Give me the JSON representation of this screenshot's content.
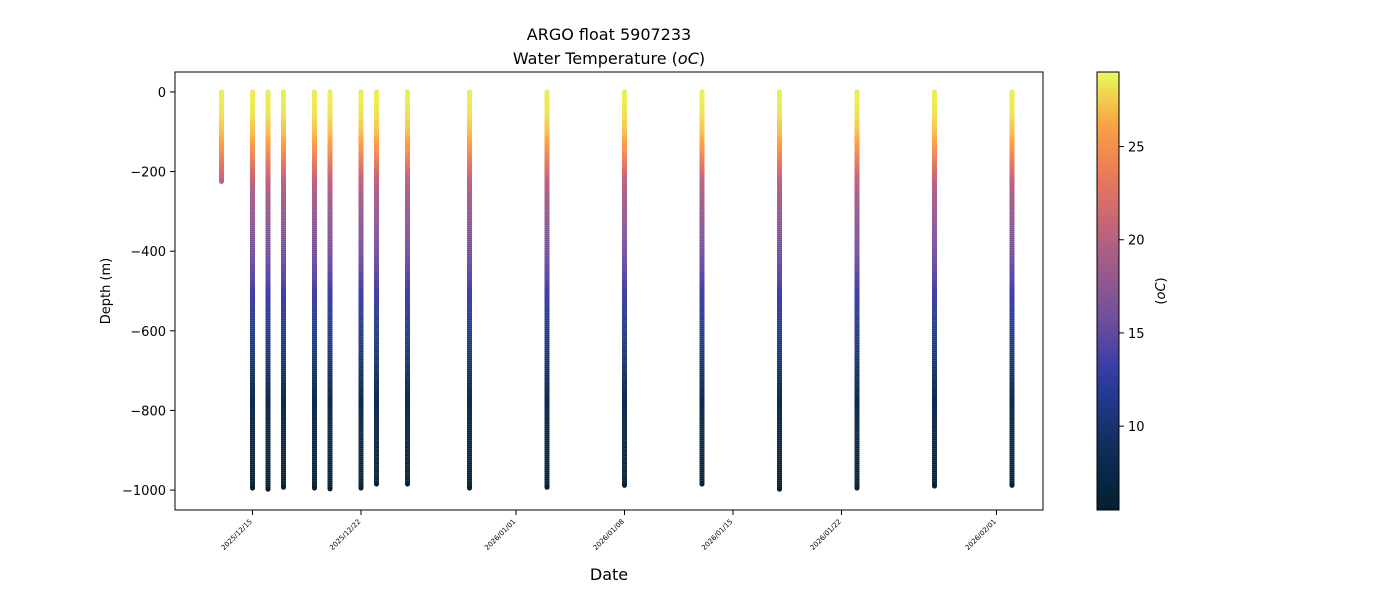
{
  "chart_data": {
    "type": "scatter",
    "title": "ARGO float 5907233",
    "subtitle": "Water Temperature (",
    "subtitle_unit_italic": "oC",
    "subtitle_close": ")",
    "xlabel": "Date",
    "ylabel": "Depth (m)",
    "colorbar_label": "(oC)",
    "xlim": [
      "2025-12-10",
      "2026-02-04"
    ],
    "ylim": [
      -1050,
      50
    ],
    "x_ticks": [
      "2025/12/15",
      "2025/12/22",
      "2026/01/01",
      "2026/01/08",
      "2026/01/15",
      "2026/01/22",
      "2026/02/01"
    ],
    "x_tick_dates": [
      "2025-12-15",
      "2025-12-22",
      "2026-01-01",
      "2026-01-08",
      "2026-01-15",
      "2026-01-22",
      "2026-02-01"
    ],
    "y_ticks": [
      0,
      -200,
      -400,
      -600,
      -800,
      -1000
    ],
    "y_tick_labels": [
      "0",
      "−200",
      "−400",
      "−600",
      "−800",
      "−1000"
    ],
    "colorbar_range": [
      5.5,
      29
    ],
    "colorbar_ticks": [
      10,
      15,
      20,
      25
    ],
    "colormap": "thermal",
    "grid": false,
    "profiles": [
      {
        "date": "2025-12-13",
        "max_depth": -225
      },
      {
        "date": "2025-12-15",
        "max_depth": -995
      },
      {
        "date": "2025-12-16",
        "max_depth": -998
      },
      {
        "date": "2025-12-17",
        "max_depth": -993
      },
      {
        "date": "2025-12-19",
        "max_depth": -995
      },
      {
        "date": "2025-12-20",
        "max_depth": -997
      },
      {
        "date": "2025-12-22",
        "max_depth": -995
      },
      {
        "date": "2025-12-23",
        "max_depth": -985
      },
      {
        "date": "2025-12-25",
        "max_depth": -985
      },
      {
        "date": "2025-12-29",
        "max_depth": -995
      },
      {
        "date": "2026-01-03",
        "max_depth": -993
      },
      {
        "date": "2026-01-08",
        "max_depth": -988
      },
      {
        "date": "2026-01-13",
        "max_depth": -985
      },
      {
        "date": "2026-01-18",
        "max_depth": -998
      },
      {
        "date": "2026-01-23",
        "max_depth": -995
      },
      {
        "date": "2026-01-28",
        "max_depth": -990
      },
      {
        "date": "2026-02-02",
        "max_depth": -988
      }
    ]
  }
}
